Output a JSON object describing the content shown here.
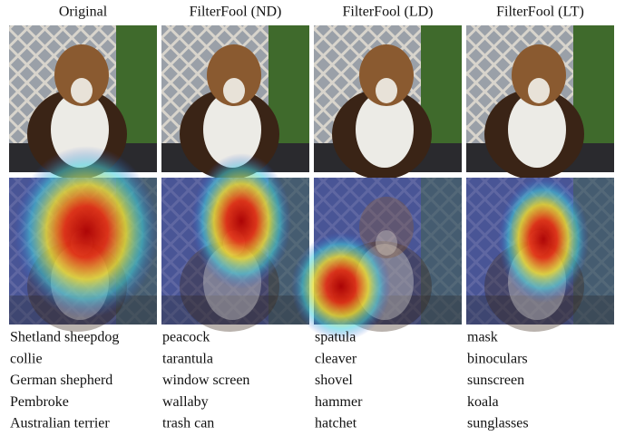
{
  "columns": [
    {
      "title": "Original",
      "labels": [
        "Shetland sheepdog",
        "collie",
        "German shepherd",
        "Pembroke",
        "Australian terrier"
      ]
    },
    {
      "title": "FilterFool (ND)",
      "labels": [
        "peacock",
        "tarantula",
        "window screen",
        "wallaby",
        "trash can"
      ]
    },
    {
      "title": "FilterFool (LD)",
      "labels": [
        "spatula",
        "cleaver",
        "shovel",
        "hammer",
        "hatchet"
      ]
    },
    {
      "title": "FilterFool (LT)",
      "labels": [
        "mask",
        "binoculars",
        "sunscreen",
        "koala",
        "sunglasses"
      ]
    }
  ]
}
